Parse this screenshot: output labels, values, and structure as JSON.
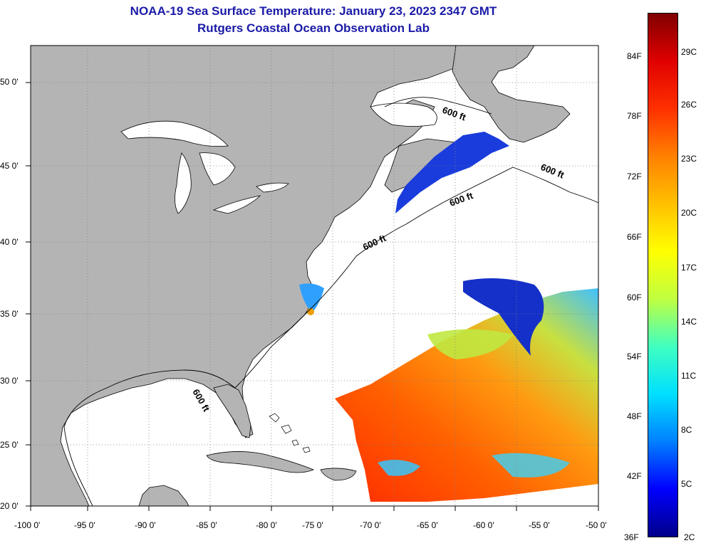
{
  "title": {
    "line1": "NOAA-19 Sea Surface Temperature:  January 23, 2023 2347 GMT",
    "line2": "Rutgers Coastal Ocean Observation Lab"
  },
  "map": {
    "lat_labels": [
      "50 0'",
      "45 0'",
      "40 0'",
      "35 0'",
      "30 0'",
      "25 0'",
      "20 0'"
    ],
    "lon_labels": [
      "-100 0'",
      "-95 0'",
      "-90 0'",
      "-85 0'",
      "-80 0'",
      "-75 0'",
      "-70 0'",
      "-65 0'",
      "-60 0'",
      "-55 0'",
      "-50 0'"
    ],
    "isobath_label": "600 ft",
    "colors": {
      "land": "#b4b4b4",
      "ocean": "#ffffff",
      "grid": "#808080"
    }
  },
  "colorbar": {
    "fahrenheit_labels": [
      "84F",
      "78F",
      "72F",
      "66F",
      "60F",
      "54F",
      "48F",
      "42F",
      "36F"
    ],
    "celsius_labels": [
      "29C",
      "26C",
      "23C",
      "20C",
      "17C",
      "14C",
      "11C",
      "8C",
      "5C",
      "2C"
    ],
    "colors": [
      "#00008a",
      "#0000ff",
      "#0080ff",
      "#00e0ff",
      "#40ffc0",
      "#c0ff40",
      "#ffff00",
      "#ffc000",
      "#ff8000",
      "#ff3000",
      "#e00000",
      "#800000"
    ]
  }
}
